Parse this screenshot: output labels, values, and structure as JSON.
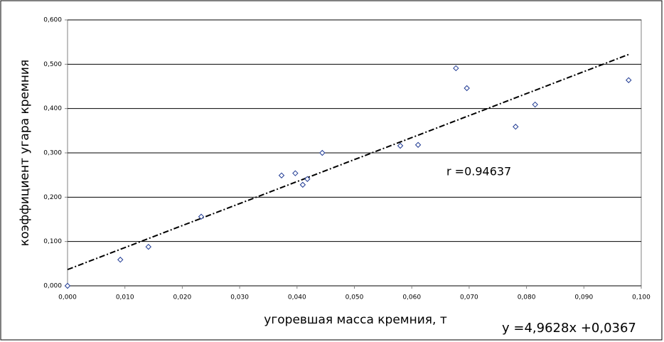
{
  "chart_data": {
    "type": "scatter",
    "x_label": "угоревшая масса кремния, т",
    "y_label": "коэффициент угара кремния",
    "x": [
      0,
      0.0092,
      0.0141,
      0.0233,
      0.0373,
      0.0397,
      0.041,
      0.0418,
      0.0444,
      0.058,
      0.0611,
      0.0677,
      0.0696,
      0.0781,
      0.0815,
      0.0978
    ],
    "values": [
      0,
      0.059,
      0.088,
      0.156,
      0.249,
      0.254,
      0.228,
      0.241,
      0.3,
      0.316,
      0.318,
      0.491,
      0.446,
      0.359,
      0.409,
      0.464
    ],
    "color": "#1f3a93",
    "xlim": [
      0,
      0.1
    ],
    "xticks": [
      {
        "value": 0,
        "label": "0,000"
      },
      {
        "value": 0.01,
        "label": "0,010"
      },
      {
        "value": 0.02,
        "label": "0,020"
      },
      {
        "value": 0.03,
        "label": "0,030"
      },
      {
        "value": 0.04,
        "label": "0,040"
      },
      {
        "value": 0.05,
        "label": "0,050"
      },
      {
        "value": 0.06,
        "label": "0,060"
      },
      {
        "value": 0.07,
        "label": "0,070"
      },
      {
        "value": 0.08,
        "label": "0,080"
      },
      {
        "value": 0.09,
        "label": "0,090"
      },
      {
        "value": 0.1,
        "label": "0,100"
      }
    ],
    "ylim": [
      0,
      0.6
    ],
    "yticks": [
      {
        "value": 0,
        "label": "0,000"
      },
      {
        "value": 0.1,
        "label": "0,100"
      },
      {
        "value": 0.2,
        "label": "0,200"
      },
      {
        "value": 0.3,
        "label": "0,300"
      },
      {
        "value": 0.4,
        "label": "0,400"
      },
      {
        "value": 0.5,
        "label": "0,500"
      },
      {
        "value": 0.6,
        "label": "0,600"
      }
    ],
    "grid": true,
    "trendline": {
      "slope": 4.9628,
      "intercept": 0.0367,
      "x": [
        0,
        0.0978
      ],
      "label": "y =4,9628x +0,0367"
    },
    "annotation": "r =0.94637"
  }
}
